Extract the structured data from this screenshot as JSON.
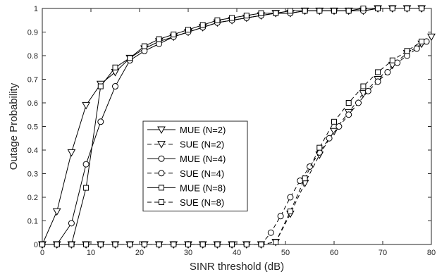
{
  "chart_data": {
    "type": "line",
    "xlabel": "SINR threshold (dB)",
    "ylabel": "Outage Probability",
    "xlim": [
      0,
      80
    ],
    "ylim": [
      0,
      1
    ],
    "xticks": [
      0,
      10,
      20,
      30,
      40,
      50,
      60,
      70,
      80
    ],
    "yticks": [
      0,
      0.1,
      0.2,
      0.3,
      0.4,
      0.5,
      0.6,
      0.7,
      0.8,
      0.9,
      1
    ],
    "grid": false,
    "legend_position": "center-left",
    "colors": {
      "line": "#000000",
      "axis": "#262626",
      "background": "#ffffff"
    },
    "series": [
      {
        "name": "MUE (N=2)",
        "marker": "triangle-down",
        "dash": "solid",
        "x": [
          0,
          3,
          6,
          9,
          12,
          15,
          18,
          21,
          24,
          27,
          30,
          33,
          36,
          39,
          42,
          45,
          48,
          51,
          54,
          57,
          60,
          63,
          66,
          69,
          72,
          75,
          78
        ],
        "y": [
          0,
          0.14,
          0.39,
          0.59,
          0.68,
          0.73,
          0.79,
          0.83,
          0.86,
          0.88,
          0.9,
          0.92,
          0.94,
          0.95,
          0.96,
          0.97,
          0.98,
          0.98,
          0.99,
          0.99,
          0.99,
          0.99,
          0.99,
          1.0,
          1.0,
          1.0,
          1.0
        ]
      },
      {
        "name": "SUE (N=2)",
        "marker": "triangle-down",
        "dash": "dashed",
        "x": [
          0,
          3,
          6,
          9,
          12,
          15,
          18,
          21,
          24,
          27,
          30,
          33,
          36,
          39,
          42,
          45,
          48,
          51,
          54,
          57,
          60,
          63,
          66,
          69,
          72,
          75,
          78,
          80
        ],
        "y": [
          0,
          0,
          0,
          0,
          0,
          0,
          0,
          0,
          0,
          0,
          0,
          0,
          0,
          0,
          0,
          0,
          0.01,
          0.13,
          0.26,
          0.38,
          0.48,
          0.56,
          0.64,
          0.7,
          0.76,
          0.81,
          0.85,
          0.88
        ]
      },
      {
        "name": "MUE (N=4)",
        "marker": "circle",
        "dash": "solid",
        "x": [
          0,
          3,
          6,
          9,
          12,
          15,
          18,
          21,
          24,
          27,
          30,
          33,
          36,
          39,
          42,
          45,
          48,
          51,
          54,
          57,
          60,
          63,
          66,
          69,
          72,
          75,
          78
        ],
        "y": [
          0,
          0,
          0.09,
          0.34,
          0.52,
          0.67,
          0.78,
          0.82,
          0.85,
          0.88,
          0.9,
          0.92,
          0.94,
          0.95,
          0.96,
          0.97,
          0.98,
          0.98,
          0.99,
          0.99,
          0.99,
          0.99,
          0.99,
          1.0,
          1.0,
          1.0,
          1.0
        ]
      },
      {
        "name": "SUE (N=4)",
        "marker": "circle",
        "dash": "dashed",
        "x": [
          0,
          3,
          6,
          9,
          12,
          15,
          18,
          21,
          24,
          27,
          30,
          33,
          36,
          39,
          42,
          45,
          47,
          49,
          51,
          53,
          55,
          57,
          59,
          61,
          63,
          65,
          67,
          69,
          71,
          73,
          75,
          77,
          79
        ],
        "y": [
          0,
          0,
          0,
          0,
          0,
          0,
          0,
          0,
          0,
          0,
          0,
          0,
          0,
          0,
          0,
          0,
          0.05,
          0.12,
          0.2,
          0.27,
          0.33,
          0.39,
          0.45,
          0.5,
          0.55,
          0.6,
          0.65,
          0.69,
          0.73,
          0.77,
          0.8,
          0.83,
          0.86
        ]
      },
      {
        "name": "MUE (N=8)",
        "marker": "square",
        "dash": "solid",
        "x": [
          0,
          3,
          6,
          9,
          12,
          15,
          18,
          21,
          24,
          27,
          30,
          33,
          36,
          39,
          42,
          45,
          48,
          51,
          54,
          57,
          60,
          63,
          66,
          69,
          72,
          75,
          78
        ],
        "y": [
          0,
          0,
          0,
          0.24,
          0.67,
          0.75,
          0.79,
          0.84,
          0.87,
          0.89,
          0.91,
          0.93,
          0.95,
          0.96,
          0.97,
          0.98,
          0.98,
          0.99,
          0.99,
          0.99,
          0.99,
          0.99,
          1.0,
          1.0,
          1.0,
          1.0,
          1.0
        ]
      },
      {
        "name": "SUE (N=8)",
        "marker": "square",
        "dash": "dashed",
        "x": [
          0,
          3,
          6,
          9,
          12,
          15,
          18,
          21,
          24,
          27,
          30,
          33,
          36,
          39,
          42,
          45,
          48,
          51,
          54,
          57,
          60,
          63,
          66,
          69,
          72,
          75,
          78
        ],
        "y": [
          0,
          0,
          0,
          0,
          0,
          0,
          0,
          0,
          0,
          0,
          0,
          0,
          0,
          0,
          0,
          0,
          0.01,
          0.14,
          0.28,
          0.41,
          0.52,
          0.6,
          0.67,
          0.73,
          0.78,
          0.82,
          0.86
        ]
      }
    ]
  }
}
